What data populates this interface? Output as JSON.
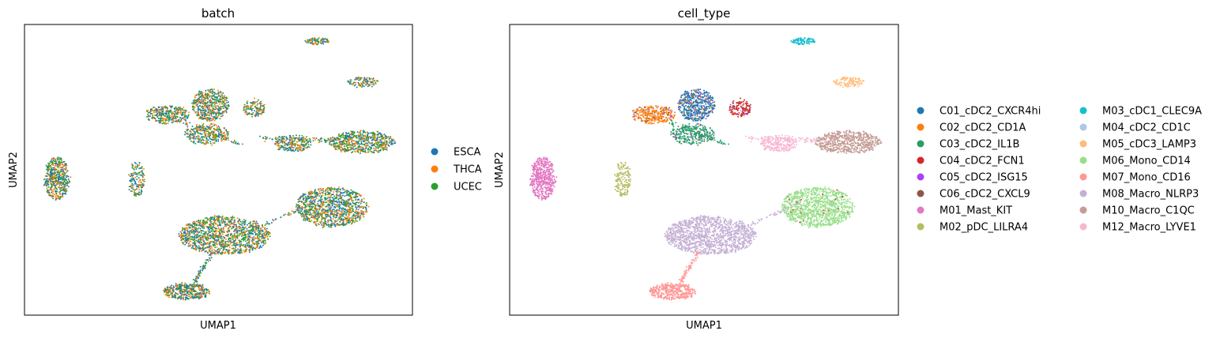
{
  "chart_data": [
    {
      "type": "scatter",
      "title": "batch",
      "xlabel": "UMAP1",
      "ylabel": "UMAP2",
      "grid": false,
      "legend_position": "right",
      "series": [
        {
          "name": "ESCA",
          "color": "#1f77b4"
        },
        {
          "name": "THCA",
          "color": "#ff7f0e"
        },
        {
          "name": "UCEC",
          "color": "#2ca02c"
        }
      ]
    },
    {
      "type": "scatter",
      "title": "cell_type",
      "xlabel": "UMAP1",
      "ylabel": "UMAP2",
      "grid": false,
      "legend_position": "right",
      "series": [
        {
          "name": "C01_cDC2_CXCR4hi",
          "color": "#1f77b4"
        },
        {
          "name": "C02_cDC2_CD1A",
          "color": "#ff7f0e"
        },
        {
          "name": "C03_cDC2_IL1B",
          "color": "#279e68"
        },
        {
          "name": "C04_cDC2_FCN1",
          "color": "#d62728"
        },
        {
          "name": "C05_cDC2_ISG15",
          "color": "#aa40fc"
        },
        {
          "name": "C06_cDC2_CXCL9",
          "color": "#8c564b"
        },
        {
          "name": "M01_Mast_KIT",
          "color": "#e377c2"
        },
        {
          "name": "M02_pDC_LILRA4",
          "color": "#b5bd61"
        },
        {
          "name": "M03_cDC1_CLEC9A",
          "color": "#17becf"
        },
        {
          "name": "M04_cDC2_CD1C",
          "color": "#aec7e8"
        },
        {
          "name": "M05_cDC3_LAMP3",
          "color": "#ffbb78"
        },
        {
          "name": "M06_Mono_CD14",
          "color": "#98df8a"
        },
        {
          "name": "M07_Mono_CD16",
          "color": "#ff9896"
        },
        {
          "name": "M08_Macro_NLRP3",
          "color": "#c5b0d5"
        },
        {
          "name": "M10_Macro_C1QC",
          "color": "#c49c94"
        },
        {
          "name": "M12_Macro_LYVE1",
          "color": "#f7b6d2"
        }
      ]
    }
  ]
}
